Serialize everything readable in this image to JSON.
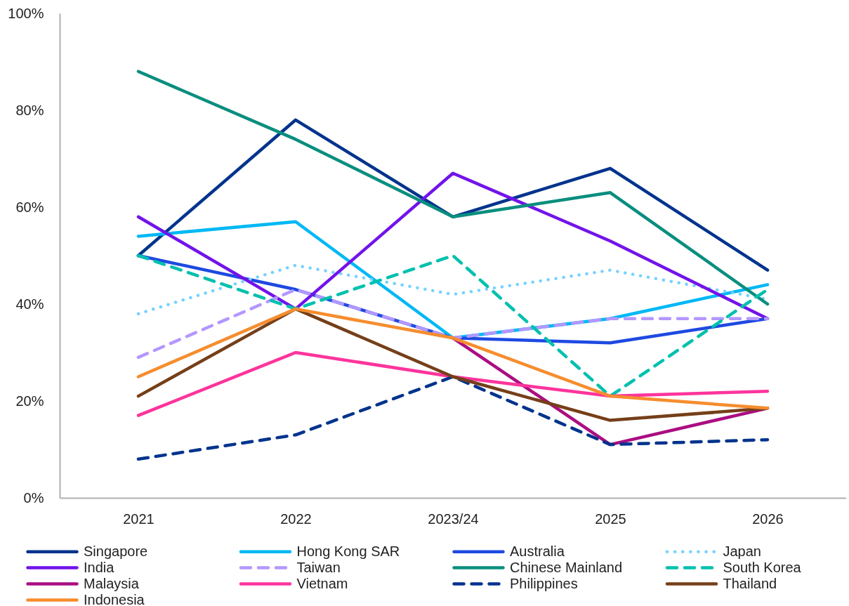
{
  "chart_data": {
    "type": "line",
    "categories": [
      "2021",
      "2022",
      "2023/24",
      "2025",
      "2026"
    ],
    "ylim": [
      0,
      100
    ],
    "yticks": [
      {
        "value": 0,
        "label": "0%"
      },
      {
        "value": 20,
        "label": "20%"
      },
      {
        "value": 40,
        "label": "40%"
      },
      {
        "value": 60,
        "label": "60%"
      },
      {
        "value": 80,
        "label": "80%"
      },
      {
        "value": 100,
        "label": "100%"
      }
    ],
    "legend": "bottom",
    "series": [
      {
        "name": "Singapore",
        "color": "#00338d",
        "line_style": "solid",
        "values": [
          50,
          78,
          58,
          68,
          47
        ]
      },
      {
        "name": "Hong Kong SAR",
        "color": "#00b8f5",
        "line_style": "solid",
        "values": [
          54,
          57,
          33,
          37,
          44
        ]
      },
      {
        "name": "Australia",
        "color": "#1e49e2",
        "line_style": "solid",
        "values": [
          50,
          43,
          33,
          32,
          37
        ]
      },
      {
        "name": "Japan",
        "color": "#76d2ff",
        "line_style": "dotted",
        "values": [
          38,
          48,
          42,
          47,
          41
        ]
      },
      {
        "name": "India",
        "color": "#7213ea",
        "line_style": "solid",
        "values": [
          58,
          39,
          67,
          53,
          37
        ]
      },
      {
        "name": "Taiwan",
        "color": "#b497ff",
        "line_style": "dashed",
        "values": [
          29,
          43,
          33,
          37,
          37
        ]
      },
      {
        "name": "Chinese Mainland",
        "color": "#098e7e",
        "line_style": "solid",
        "values": [
          88,
          74,
          58,
          63,
          40
        ]
      },
      {
        "name": "South Korea",
        "color": "#00c0ae",
        "line_style": "dashed",
        "values": [
          50,
          39,
          50,
          21,
          43
        ]
      },
      {
        "name": "Malaysia",
        "color": "#ab0d82",
        "line_style": "solid",
        "values": [
          null,
          null,
          33,
          11,
          18.5
        ]
      },
      {
        "name": "Vietnam",
        "color": "#fd349c",
        "line_style": "solid",
        "values": [
          17,
          30,
          25,
          21,
          22
        ]
      },
      {
        "name": "Philippines",
        "color": "#00338d",
        "line_style": "dashed",
        "values": [
          8,
          13,
          25,
          11,
          12
        ]
      },
      {
        "name": "Thailand",
        "color": "#753f19",
        "line_style": "solid",
        "values": [
          21,
          39,
          25,
          16,
          18.5
        ]
      },
      {
        "name": "Indonesia",
        "color": "#f68d2e",
        "line_style": "solid",
        "values": [
          25,
          39,
          33,
          21,
          18.5
        ]
      }
    ]
  }
}
